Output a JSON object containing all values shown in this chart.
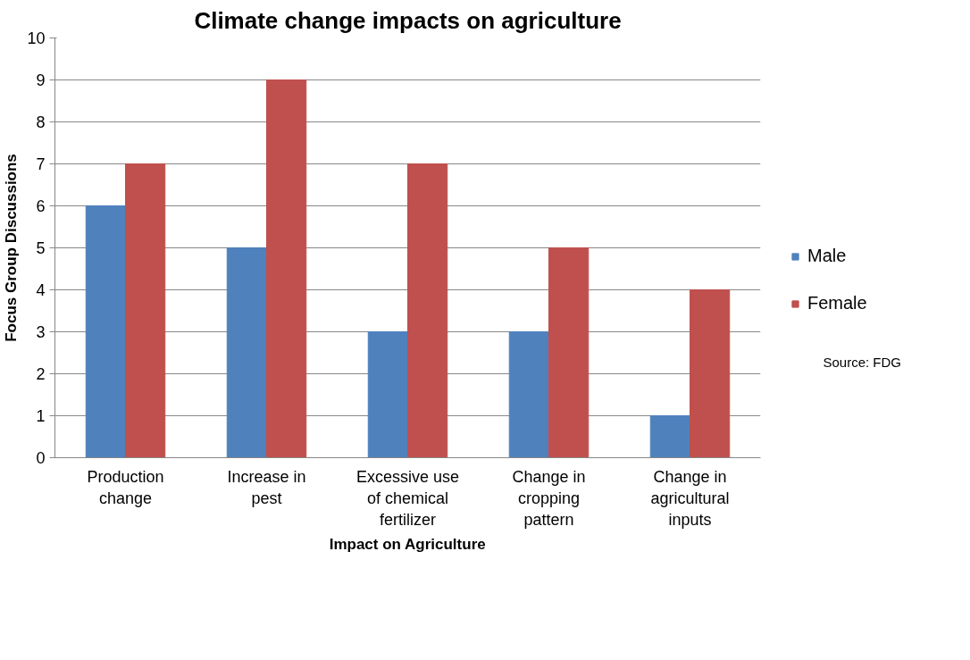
{
  "chart_data": {
    "type": "bar",
    "title": "Climate change impacts on agriculture",
    "xlabel": "Impact on Agriculture",
    "ylabel": "Focus Group Discussions",
    "categories": [
      "Production\nchange",
      "Increase in\npest",
      "Excessive use\nof chemical\nfertilizer",
      "Change in\ncropping\npattern",
      "Change in\nagricultural\ninputs"
    ],
    "series": [
      {
        "name": "Male",
        "color": "#4f81bd",
        "values": [
          6,
          5,
          3,
          3,
          1
        ]
      },
      {
        "name": "Female",
        "color": "#c0504d",
        "values": [
          7,
          9,
          7,
          5,
          4
        ]
      }
    ],
    "ylim": [
      0,
      10
    ],
    "yticks": [
      0,
      1,
      2,
      3,
      4,
      5,
      6,
      7,
      8,
      9,
      10
    ],
    "grid": "y",
    "legend": "right",
    "annotations": [
      "Source: FDG"
    ]
  }
}
